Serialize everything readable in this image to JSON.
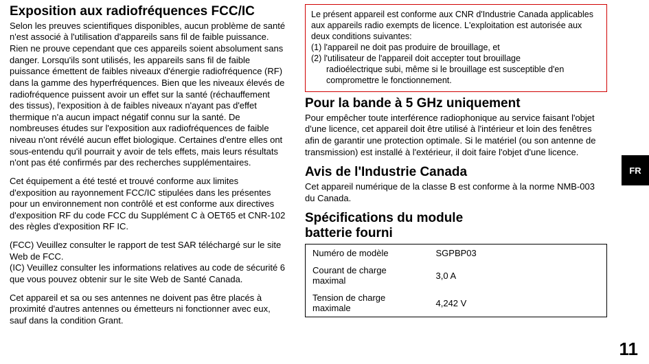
{
  "side_tab": "FR",
  "page_number": "11",
  "left": {
    "h1": "Exposition aux radiofréquences FCC/IC",
    "p1": "Selon les preuves scientifiques disponibles, aucun problème de santé n'est associé à l'utilisation d'appareils sans fil de faible puissance. Rien ne prouve cependant que ces appareils soient absolument sans danger. Lorsqu'ils sont utilisés, les appareils sans fil de faible puissance émettent de faibles niveaux d'énergie radiofréquence (RF) dans la gamme des hyperfréquences. Bien que les niveaux élevés de radiofréquence puissent avoir un effet sur la santé (réchauffement des tissus), l'exposition à de faibles niveaux n'ayant pas d'effet thermique n'a aucun impact négatif connu sur la santé. De nombreuses études sur l'exposition aux radiofréquences de faible niveau n'ont révélé aucun effet biologique. Certaines d'entre elles ont sous-entendu qu'il pourrait y avoir de tels effets, mais leurs résultats n'ont pas été confirmés par des recherches supplémentaires.",
    "p2": "Cet équipement a été testé et trouvé conforme aux limites d'exposition au rayonnement FCC/IC stipulées dans les présentes pour un environnement non contrôlé et est conforme aux directives d'exposition RF du code FCC du Supplément C à OET65 et CNR-102 des règles d'exposition RF IC.",
    "p3a": "(FCC) Veuillez consulter le rapport de test SAR téléchargé sur le site Web de FCC.",
    "p3b": "(IC) Veuillez consulter les informations relatives au code de sécurité 6 que vous pouvez obtenir sur le site Web de Santé Canada.",
    "p4": "Cet appareil et sa ou ses antennes ne doivent pas être placés à proximité d'autres antennes ou émetteurs ni fonctionner avec eux, sauf dans la condition Grant."
  },
  "right": {
    "box_l1": "Le présent appareil est conforme aux CNR d'Industrie Canada applicables aux appareils radio exempts de licence. L'exploitation est autorisée aux deux conditions suivantes:",
    "box_l2": "(1) l'appareil ne doit pas produire de brouillage, et",
    "box_l3": "(2) l'utilisateur de l'appareil doit accepter tout brouillage",
    "box_l4": "radioélectrique subi, même si le brouillage est susceptible d'en compromettre le fonctionnement.",
    "h2": "Pour la bande à 5 GHz uniquement",
    "p_h2": "Pour empêcher toute interférence radiophonique au service faisant l'objet d'une licence, cet appareil doit être utilisé à l'intérieur et loin des fenêtres afin de garantir une protection optimale. Si le matériel (ou son antenne de transmission) est installé à l'extérieur, il doit faire l'objet d'une licence.",
    "h3": "Avis de l'Industrie Canada",
    "p_h3": "Cet appareil numérique de la classe B est conforme à la norme NMB-003 du Canada.",
    "h4a": "Spécifications du module",
    "h4b": "batterie fourni",
    "spec": {
      "rows": [
        {
          "label": "Numéro de modèle",
          "value": "SGPBP03"
        },
        {
          "label": "Courant de charge maximal",
          "value": "3,0 A"
        },
        {
          "label": "Tension de charge maximale",
          "value": "4,242 V"
        }
      ]
    }
  }
}
